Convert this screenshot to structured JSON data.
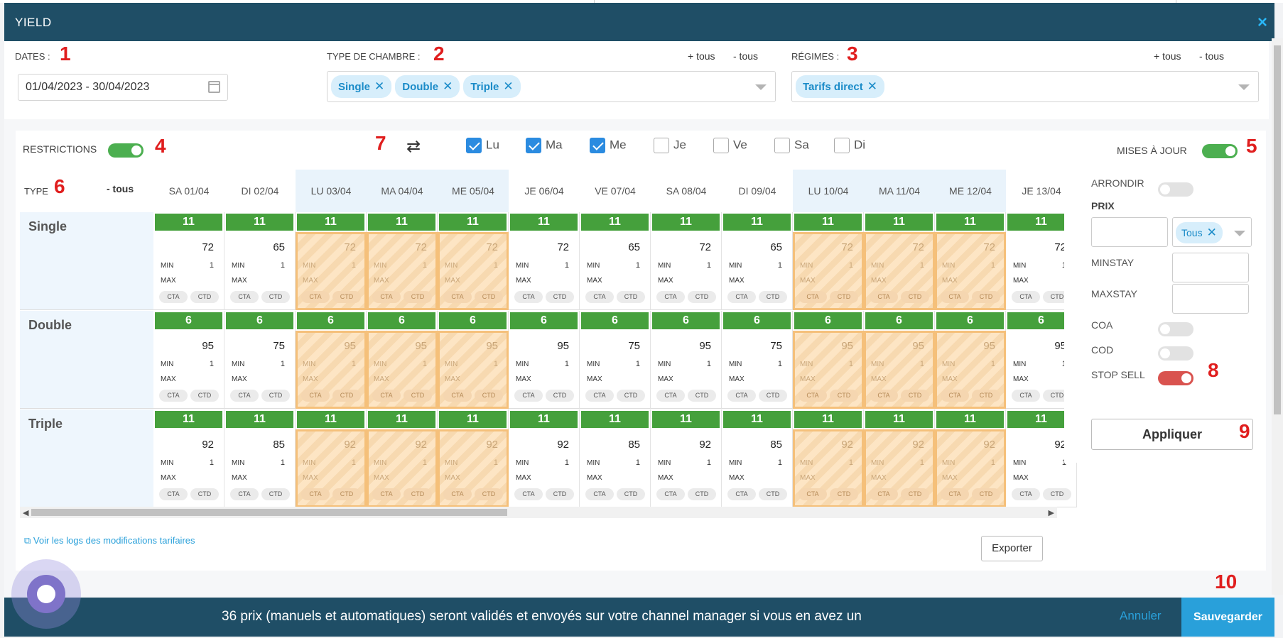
{
  "header": {
    "title": "YIELD",
    "close": "×"
  },
  "filters": {
    "dates_label": "DATES :",
    "dates_value": "01/04/2023 - 30/04/2023",
    "room_label": "TYPE DE CHAMBRE :",
    "room_tags": [
      "Single",
      "Double",
      "Triple"
    ],
    "plus_tous": "+ tous",
    "minus_tous": "- tous",
    "regimes_label": "RÉGIMES :",
    "regimes_tags": [
      "Tarifs direct"
    ]
  },
  "restrictions": {
    "label": "RESTRICTIONS",
    "updates_label": "MISES À JOUR"
  },
  "days": [
    {
      "label": "Lu",
      "checked": true
    },
    {
      "label": "Ma",
      "checked": true
    },
    {
      "label": "Me",
      "checked": true
    },
    {
      "label": "Je",
      "checked": false
    },
    {
      "label": "Ve",
      "checked": false
    },
    {
      "label": "Sa",
      "checked": false
    },
    {
      "label": "Di",
      "checked": false
    }
  ],
  "grid": {
    "type_label": "TYPE",
    "tous_label": "- tous",
    "columns": [
      "SA 01/04",
      "DI 02/04",
      "LU 03/04",
      "MA 04/04",
      "ME 05/04",
      "JE 06/04",
      "VE 07/04",
      "SA 08/04",
      "DI 09/04",
      "LU 10/04",
      "MA 11/04",
      "ME 12/04",
      "JE 13/04"
    ],
    "stopsell": [
      false,
      false,
      true,
      true,
      true,
      false,
      false,
      false,
      false,
      true,
      true,
      true,
      false
    ],
    "weekhighlight": [
      false,
      false,
      true,
      true,
      true,
      false,
      false,
      false,
      false,
      true,
      true,
      true,
      false
    ],
    "rows": [
      {
        "name": "Single",
        "availability": 11,
        "prices": [
          72,
          65,
          72,
          72,
          72,
          72,
          65,
          72,
          65,
          72,
          72,
          72,
          72
        ]
      },
      {
        "name": "Double",
        "availability": 6,
        "prices": [
          95,
          75,
          95,
          95,
          95,
          95,
          75,
          95,
          75,
          95,
          95,
          95,
          95
        ]
      },
      {
        "name": "Triple",
        "availability": 11,
        "prices": [
          92,
          85,
          92,
          92,
          92,
          92,
          85,
          92,
          85,
          92,
          92,
          92,
          92
        ]
      }
    ],
    "min_label": "MIN",
    "min_value": "1",
    "max_label": "MAX",
    "cta": "CTA",
    "ctd": "CTD"
  },
  "side": {
    "arrondir": "ARRONDIR",
    "prix": "PRIX",
    "prix_tag": "Tous",
    "minstay": "MINSTAY",
    "maxstay": "MAXSTAY",
    "coa": "COA",
    "cod": "COD",
    "stop_sell": "STOP SELL",
    "apply": "Appliquer"
  },
  "links": {
    "logs": "Voir les logs des modifications tarifaires",
    "export": "Exporter"
  },
  "footer": {
    "message": "36 prix (manuels et automatiques) seront validés et envoyés sur votre channel manager si vous en avez un",
    "cancel": "Annuler",
    "save": "Sauvegarder"
  },
  "annotations": [
    "1",
    "2",
    "3",
    "4",
    "5",
    "6",
    "7",
    "8",
    "9",
    "10"
  ],
  "colors": {
    "header": "#1f4e66",
    "accent": "#29a0da",
    "available": "#45a03c",
    "stop_sell": "#fde5c4"
  }
}
